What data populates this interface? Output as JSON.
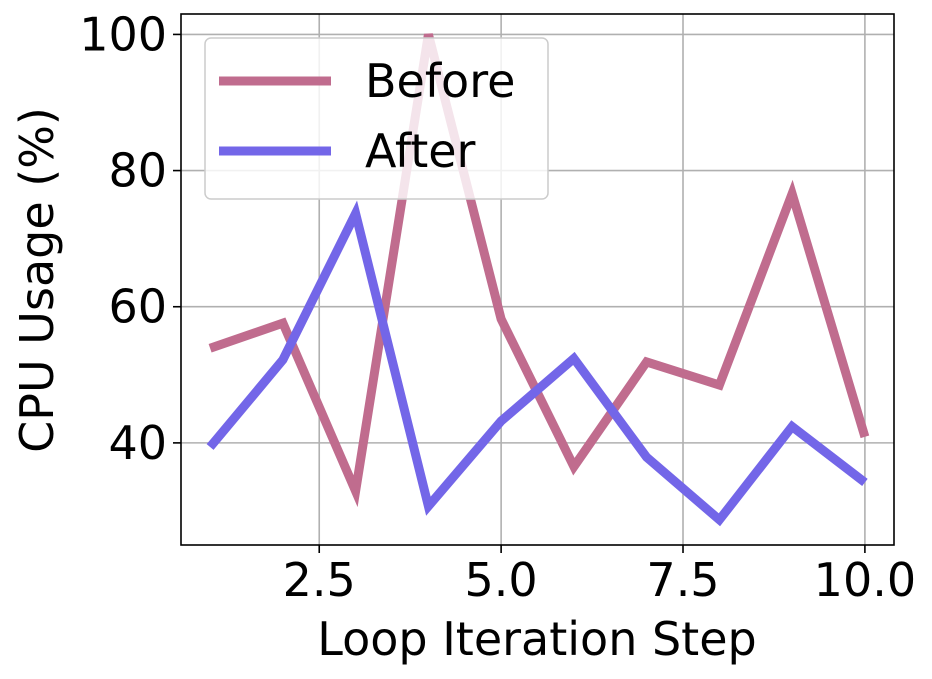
{
  "chart_data": {
    "type": "line",
    "xlabel": "Loop Iteration Step",
    "ylabel": "CPU Usage (%)",
    "xlim": [
      0.6,
      10.4
    ],
    "ylim": [
      25,
      103
    ],
    "xticks": [
      2.5,
      5.0,
      7.5,
      10.0
    ],
    "xtick_labels": [
      "2.5",
      "5.0",
      "7.5",
      "10.0"
    ],
    "yticks": [
      40,
      60,
      80,
      100
    ],
    "ytick_labels": [
      "40",
      "60",
      "80",
      "100"
    ],
    "grid": true,
    "legend_position": "upper-left",
    "x": [
      1,
      2,
      3,
      4,
      5,
      6,
      7,
      8,
      9,
      10
    ],
    "series": [
      {
        "name": "Before",
        "color": "#c06c8e",
        "values": [
          53.9,
          57.6,
          32.9,
          100.0,
          58.2,
          36.5,
          51.9,
          48.5,
          76.6,
          40.9
        ]
      },
      {
        "name": "After",
        "color": "#7366e8",
        "values": [
          39.4,
          52.2,
          73.7,
          30.7,
          43.2,
          52.4,
          37.9,
          28.7,
          42.4,
          34.2
        ]
      }
    ]
  }
}
